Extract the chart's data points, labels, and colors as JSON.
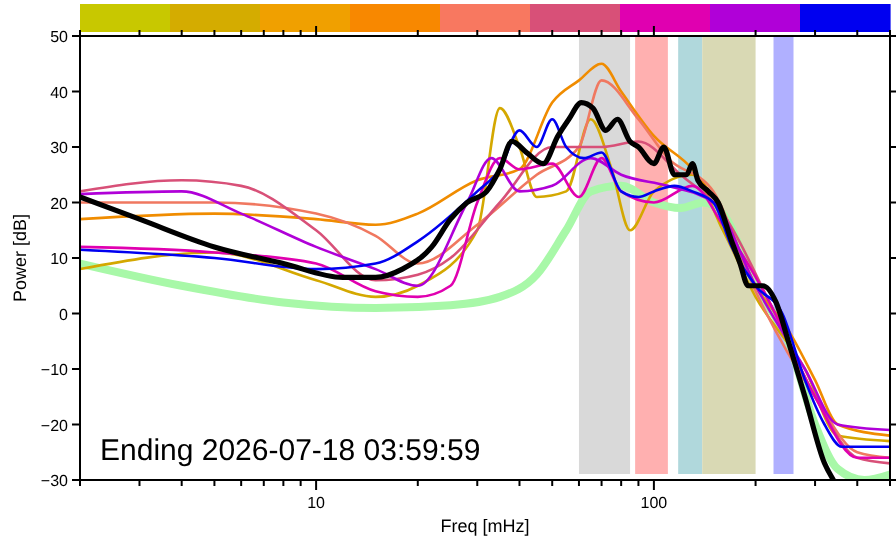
{
  "chart_data": {
    "type": "line",
    "xlabel": "Freq [mHz]",
    "ylabel": "Power [dB]",
    "log": "x",
    "xlim": [
      2,
      500
    ],
    "xticks": [
      {
        "value": 2,
        "label": null
      },
      {
        "value": 3,
        "label": null
      },
      {
        "value": 4,
        "label": null
      },
      {
        "value": 5,
        "label": null
      },
      {
        "value": 6,
        "label": null
      },
      {
        "value": 7,
        "label": null
      },
      {
        "value": 8,
        "label": null
      },
      {
        "value": 9,
        "label": null
      },
      10,
      {
        "value": 20,
        "label": null
      },
      {
        "value": 30,
        "label": null
      },
      {
        "value": 40,
        "label": null
      },
      {
        "value": 50,
        "label": null
      },
      {
        "value": 60,
        "label": null
      },
      {
        "value": 70,
        "label": null
      },
      {
        "value": 80,
        "label": null
      },
      {
        "value": 90,
        "label": null
      },
      100,
      {
        "value": 200,
        "label": null
      },
      {
        "value": 300,
        "label": null
      },
      {
        "value": 400,
        "label": null
      },
      {
        "value": 500,
        "label": null
      }
    ],
    "ylim": [
      -30,
      50
    ],
    "yticks": [
      -30,
      -20,
      -10,
      0,
      10,
      20,
      30,
      40,
      50
    ],
    "grid": false,
    "annotations": [
      "Ending 2026-07-18 03:59:59"
    ],
    "bands": [
      {
        "axis": "x",
        "from": 60,
        "to": 85,
        "color": "#d9d9d9"
      },
      {
        "axis": "x",
        "from": 88,
        "to": 110,
        "color": "#ffb0b0"
      },
      {
        "axis": "x",
        "from": 118,
        "to": 139,
        "color": "#b0d8dc"
      },
      {
        "axis": "x",
        "from": 139,
        "to": 200,
        "color": "#d9d9b4"
      },
      {
        "axis": "x",
        "from": 226,
        "to": 259,
        "color": "#b0b0ff"
      }
    ],
    "series": [
      {
        "color": "#a8f8a8",
        "x": [
          2,
          4,
          8,
          15,
          25,
          35,
          45,
          55,
          65,
          80,
          100,
          120,
          140,
          160,
          200,
          250,
          300,
          350,
          420,
          500
        ],
        "values": [
          9,
          5,
          2,
          1,
          1.5,
          3,
          7,
          15,
          22,
          23,
          20,
          19,
          20,
          18,
          5,
          -5,
          -20,
          -28,
          -30,
          -29
        ]
      },
      {
        "color": "#d4a800",
        "x": [
          2,
          5,
          10,
          15,
          20,
          30,
          35,
          40,
          45,
          55,
          65,
          75,
          85,
          100,
          130,
          160,
          200,
          280,
          350,
          500
        ],
        "values": [
          8,
          11,
          6,
          3,
          5,
          15,
          37,
          30,
          21,
          22,
          35,
          26,
          15,
          22,
          25,
          15,
          3,
          -10,
          -22,
          -23
        ]
      },
      {
        "color": "#f08c00",
        "x": [
          2,
          5,
          10,
          15,
          20,
          30,
          40,
          50,
          60,
          70,
          80,
          100,
          130,
          160,
          200,
          250,
          300,
          350,
          500
        ],
        "values": [
          17,
          18,
          17,
          16,
          18,
          24,
          26,
          38,
          42,
          45,
          40,
          32,
          26,
          18,
          5,
          -3,
          -12,
          -20,
          -22
        ]
      },
      {
        "color": "#f07860",
        "x": [
          2,
          5,
          10,
          15,
          20,
          30,
          45,
          60,
          70,
          90,
          110,
          150,
          200,
          300,
          400,
          500
        ],
        "values": [
          20,
          20,
          18,
          14,
          9,
          16,
          25,
          30,
          42,
          35,
          28,
          22,
          4,
          -15,
          -25,
          -26
        ]
      },
      {
        "color": "#d85078",
        "x": [
          2,
          4,
          6,
          10,
          15,
          20,
          25,
          35,
          50,
          70,
          90,
          120,
          160,
          220,
          300,
          400,
          500
        ],
        "values": [
          22,
          24,
          23,
          15,
          6,
          7,
          10,
          20,
          30,
          30,
          31,
          25,
          18,
          2,
          -15,
          -26,
          -27
        ]
      },
      {
        "color": "#e000b0",
        "x": [
          2,
          5,
          10,
          15,
          20,
          25,
          30,
          35,
          40,
          50,
          60,
          70,
          80,
          100,
          130,
          160,
          220,
          300,
          400,
          500
        ],
        "values": [
          12,
          11,
          9,
          4,
          3,
          5,
          20,
          28,
          26,
          27,
          21,
          28,
          22,
          20,
          23,
          16,
          2,
          -15,
          -26,
          -26
        ]
      },
      {
        "color": "#b000d8",
        "x": [
          2,
          4,
          6,
          10,
          15,
          20,
          28,
          33,
          40,
          50,
          65,
          80,
          110,
          150,
          200,
          280,
          350,
          500
        ],
        "values": [
          21.5,
          22,
          18,
          12,
          8,
          5,
          20,
          28,
          22,
          23,
          28,
          25,
          23,
          20,
          5,
          -10,
          -20,
          -21
        ]
      },
      {
        "color": "#0000f0",
        "x": [
          2,
          5,
          10,
          15,
          20,
          30,
          35,
          40,
          45,
          50,
          55,
          62,
          70,
          80,
          90,
          100,
          115,
          130,
          150,
          170,
          200,
          240,
          280,
          320,
          360,
          500
        ],
        "values": [
          11.5,
          10,
          8,
          9,
          13,
          22,
          26,
          33,
          30,
          35,
          30,
          28,
          29,
          22,
          21,
          22,
          23,
          22,
          20,
          12,
          5,
          0,
          -12,
          -20,
          -24,
          -24
        ]
      },
      {
        "color": "#000000",
        "x": [
          2,
          3,
          5,
          8,
          12,
          15,
          18,
          22,
          25,
          28,
          32,
          35,
          38,
          42,
          47,
          52,
          56,
          61,
          66,
          72,
          78,
          85,
          90,
          100,
          107,
          115,
          125,
          130,
          135,
          145,
          155,
          170,
          180,
          190,
          210,
          230,
          250,
          280,
          320,
          340
        ],
        "values": [
          21,
          17,
          12,
          9,
          6.5,
          6.5,
          8,
          12,
          17,
          20,
          22,
          26,
          31,
          29,
          27,
          32,
          35,
          38,
          37,
          33,
          35,
          31,
          30,
          27,
          30,
          25,
          25,
          27,
          24,
          22,
          20,
          13,
          9,
          5,
          5,
          2,
          -5,
          -15,
          -27,
          -30
        ]
      }
    ]
  }
}
